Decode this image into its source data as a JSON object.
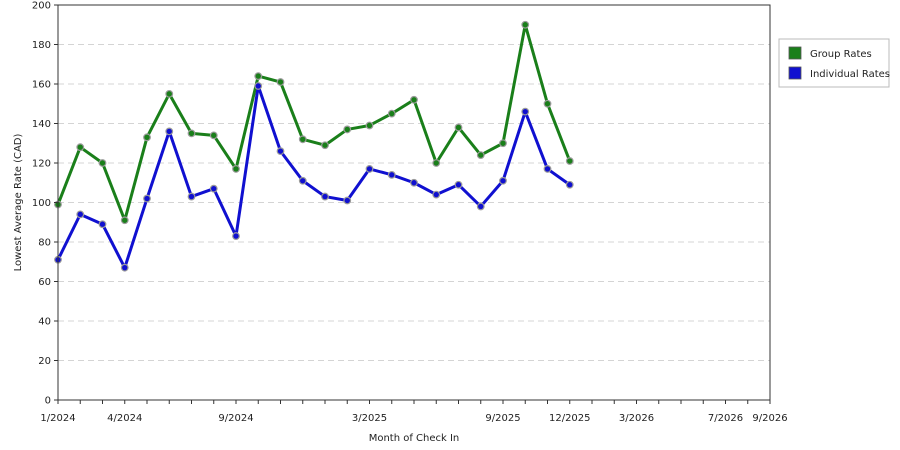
{
  "chart_data": {
    "type": "line",
    "title": "",
    "xlabel": "Month of Check In",
    "ylabel": "Lowest Average Rate (CAD)",
    "ylim": [
      0,
      200
    ],
    "yticks": [
      0,
      20,
      40,
      60,
      80,
      100,
      120,
      140,
      160,
      180,
      200
    ],
    "x": [
      "1/2024",
      "2/2024",
      "3/2024",
      "4/2024",
      "5/2024",
      "6/2024",
      "7/2024",
      "8/2024",
      "9/2024",
      "10/2024",
      "11/2024",
      "12/2024",
      "1/2025",
      "2/2025",
      "3/2025",
      "4/2025",
      "5/2025",
      "6/2025",
      "7/2025",
      "8/2025",
      "9/2025",
      "10/2025",
      "11/2025",
      "12/2025",
      "1/2026",
      "2/2026",
      "3/2026",
      "4/2026",
      "5/2026",
      "6/2026",
      "7/2026",
      "8/2026",
      "9/2026"
    ],
    "x_labeled_ticks": [
      "1/2024",
      "4/2024",
      "9/2024",
      "3/2025",
      "9/2025",
      "12/2025",
      "3/2026",
      "7/2026",
      "9/2026"
    ],
    "grid": "horizontal-dashed",
    "legend_position": "right",
    "series": [
      {
        "name": "Group Rates",
        "color": "#1a7f1a",
        "points": [
          {
            "x": "1/2024",
            "y": 99
          },
          {
            "x": "2/2024",
            "y": 128
          },
          {
            "x": "3/2024",
            "y": 120
          },
          {
            "x": "4/2024",
            "y": 91
          },
          {
            "x": "5/2024",
            "y": 133
          },
          {
            "x": "6/2024",
            "y": 155
          },
          {
            "x": "7/2024",
            "y": 135
          },
          {
            "x": "8/2024",
            "y": 134
          },
          {
            "x": "9/2024",
            "y": 117
          },
          {
            "x": "10/2024",
            "y": 164
          },
          {
            "x": "11/2024",
            "y": 161
          },
          {
            "x": "12/2024",
            "y": 132
          },
          {
            "x": "1/2025",
            "y": 129
          },
          {
            "x": "2/2025",
            "y": 137
          },
          {
            "x": "3/2025",
            "y": 139
          },
          {
            "x": "4/2025",
            "y": 145
          },
          {
            "x": "5/2025",
            "y": 152
          },
          {
            "x": "6/2025",
            "y": 120
          },
          {
            "x": "7/2025",
            "y": 138
          },
          {
            "x": "8/2025",
            "y": 124
          },
          {
            "x": "9/2025",
            "y": 130
          },
          {
            "x": "10/2025",
            "y": 190
          },
          {
            "x": "11/2025",
            "y": 150
          },
          {
            "x": "12/2025",
            "y": 121
          }
        ]
      },
      {
        "name": "Individual Rates",
        "color": "#1010d0",
        "points": [
          {
            "x": "1/2024",
            "y": 71
          },
          {
            "x": "2/2024",
            "y": 94
          },
          {
            "x": "3/2024",
            "y": 89
          },
          {
            "x": "4/2024",
            "y": 67
          },
          {
            "x": "5/2024",
            "y": 102
          },
          {
            "x": "6/2024",
            "y": 136
          },
          {
            "x": "7/2024",
            "y": 103
          },
          {
            "x": "8/2024",
            "y": 107
          },
          {
            "x": "9/2024",
            "y": 83
          },
          {
            "x": "10/2024",
            "y": 159
          },
          {
            "x": "11/2024",
            "y": 126
          },
          {
            "x": "12/2024",
            "y": 111
          },
          {
            "x": "1/2025",
            "y": 103
          },
          {
            "x": "2/2025",
            "y": 101
          },
          {
            "x": "3/2025",
            "y": 117
          },
          {
            "x": "4/2025",
            "y": 114
          },
          {
            "x": "5/2025",
            "y": 110
          },
          {
            "x": "6/2025",
            "y": 104
          },
          {
            "x": "7/2025",
            "y": 109
          },
          {
            "x": "8/2025",
            "y": 98
          },
          {
            "x": "9/2025",
            "y": 111
          },
          {
            "x": "10/2025",
            "y": 146
          },
          {
            "x": "11/2025",
            "y": 117
          },
          {
            "x": "12/2025",
            "y": 109
          }
        ]
      }
    ]
  }
}
